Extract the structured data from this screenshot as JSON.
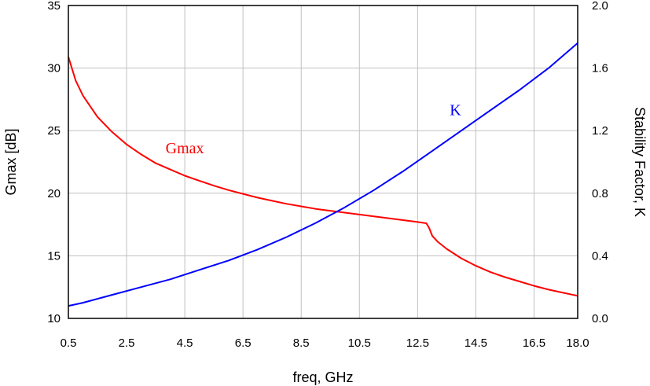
{
  "chart_data": {
    "type": "line",
    "xlabel": "freq, GHz",
    "ylabel": "Gmax [dB]",
    "y2label": "Stability Factor, K",
    "xlim": [
      0.5,
      18.0
    ],
    "ylim": [
      10,
      35
    ],
    "y2lim": [
      0.0,
      2.0
    ],
    "x_ticks": [
      "0.5",
      "2.5",
      "4.5",
      "6.5",
      "8.5",
      "10.5",
      "12.5",
      "14.5",
      "16.5",
      "18.0"
    ],
    "y_ticks": [
      "10",
      "15",
      "20",
      "25",
      "30",
      "35"
    ],
    "y2_ticks": [
      "0.0",
      "0.4",
      "0.8",
      "1.2",
      "1.6",
      "2.0"
    ],
    "grid": true,
    "series": [
      {
        "name": "Gmax",
        "axis": "left",
        "color": "#ff0000",
        "x": [
          0.5,
          0.75,
          1.0,
          1.5,
          2.0,
          2.5,
          3.0,
          3.5,
          4.0,
          4.5,
          5.0,
          5.5,
          6.0,
          6.5,
          7.0,
          7.5,
          8.0,
          8.5,
          9.0,
          9.5,
          10.0,
          10.5,
          11.0,
          11.5,
          12.0,
          12.5,
          12.8,
          12.9,
          13.0,
          13.2,
          13.5,
          14.0,
          14.5,
          15.0,
          15.5,
          16.0,
          16.5,
          17.0,
          17.5,
          18.0
        ],
        "y": [
          30.9,
          29.0,
          27.8,
          26.1,
          24.9,
          23.9,
          23.1,
          22.4,
          21.9,
          21.4,
          21.0,
          20.6,
          20.25,
          19.95,
          19.65,
          19.4,
          19.15,
          18.95,
          18.75,
          18.6,
          18.45,
          18.3,
          18.15,
          18.0,
          17.85,
          17.7,
          17.6,
          17.2,
          16.6,
          16.1,
          15.55,
          14.8,
          14.2,
          13.7,
          13.3,
          12.95,
          12.6,
          12.3,
          12.05,
          11.8
        ]
      },
      {
        "name": "K",
        "axis": "right",
        "color": "#0000ff",
        "x": [
          0.5,
          1.0,
          2.0,
          3.0,
          4.0,
          5.0,
          6.0,
          7.0,
          8.0,
          9.0,
          10.0,
          11.0,
          12.0,
          13.0,
          14.0,
          15.0,
          16.0,
          17.0,
          18.0
        ],
        "y": [
          0.08,
          0.1,
          0.15,
          0.2,
          0.25,
          0.31,
          0.37,
          0.44,
          0.52,
          0.61,
          0.71,
          0.82,
          0.94,
          1.07,
          1.2,
          1.33,
          1.46,
          1.6,
          1.76
        ]
      }
    ],
    "annotations": [
      {
        "text": "Gmax",
        "x": 4.5,
        "y": 23.2,
        "axis": "left",
        "color": "#ff0000"
      },
      {
        "text": "K",
        "x": 13.8,
        "y": 1.3,
        "axis": "right",
        "color": "#0000ff"
      }
    ]
  }
}
